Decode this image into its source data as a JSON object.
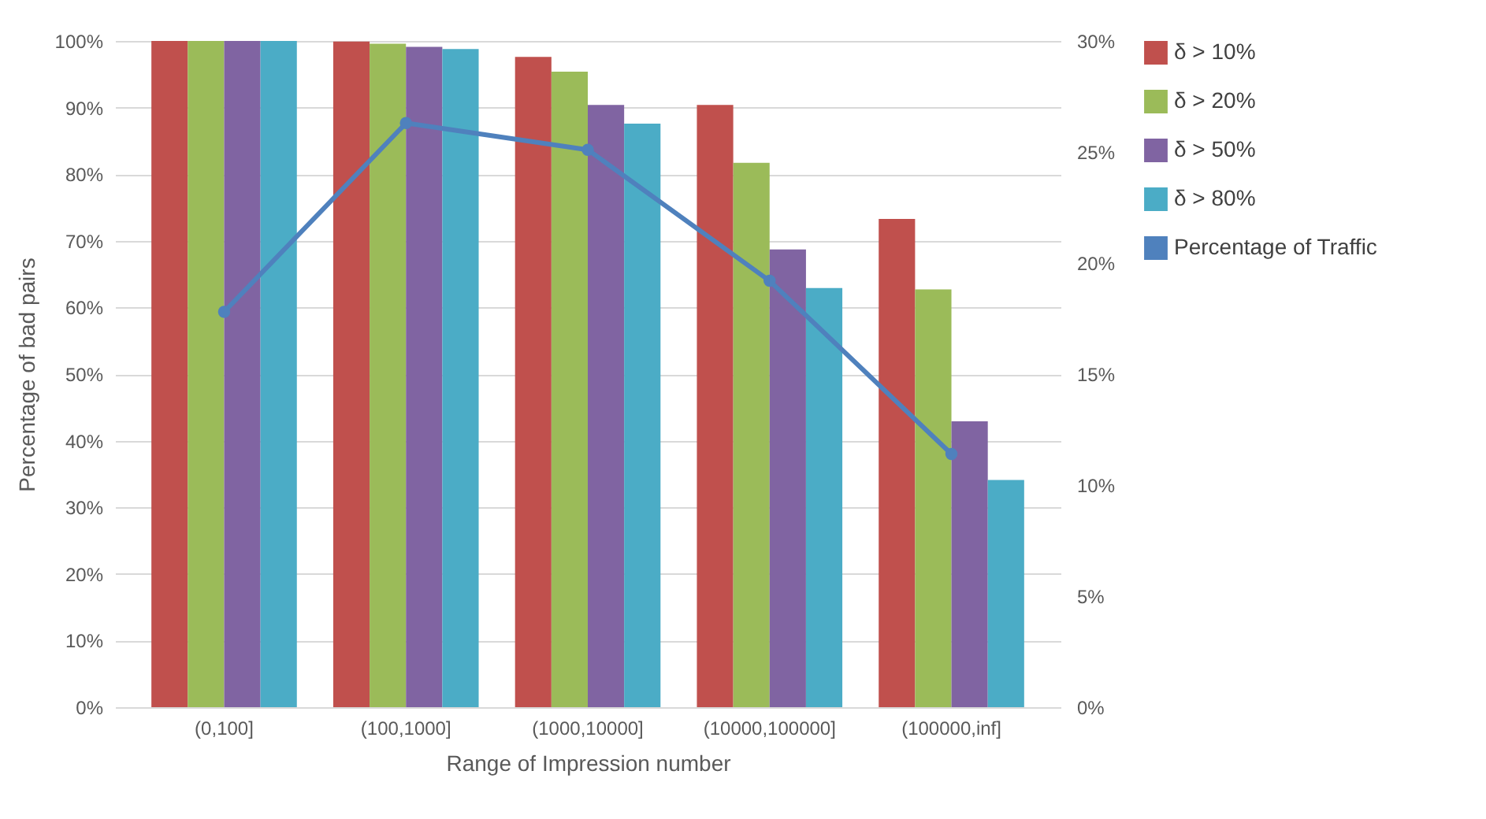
{
  "chart_data": {
    "type": "bar",
    "xlabel": "Range of Impression number",
    "ylabel": "Percentage of bad pairs",
    "categories": [
      "(0,100]",
      "(100,1000]",
      "(1000,10000]",
      "(10000,100000]",
      "(100000,inf]"
    ],
    "series": [
      {
        "name": "δ > 10%",
        "color": "#c0504d",
        "values": [
          100,
          99.9,
          97.6,
          90.4,
          73.3
        ]
      },
      {
        "name": "δ  > 20%",
        "color": "#9bbb59",
        "values": [
          100,
          99.6,
          95.4,
          81.7,
          62.7
        ]
      },
      {
        "name": "δ  > 50%",
        "color": "#8064a2",
        "values": [
          100,
          99.1,
          90.4,
          68.7,
          42.9
        ]
      },
      {
        "name": "δ  > 80%",
        "color": "#4bacc6",
        "values": [
          100,
          98.8,
          87.6,
          62.9,
          34.1
        ]
      },
      {
        "name": "Percentage of Traffic",
        "type": "line",
        "axis": "y2",
        "color": "#4f81bd",
        "values": [
          17.8,
          26.3,
          25.1,
          19.2,
          11.4
        ]
      }
    ],
    "ylim": [
      0,
      100
    ],
    "yticks": [
      {
        "value": 0,
        "label": "0%"
      },
      {
        "value": 10,
        "label": "10%"
      },
      {
        "value": 20,
        "label": "20%"
      },
      {
        "value": 30,
        "label": "30%"
      },
      {
        "value": 40,
        "label": "40%"
      },
      {
        "value": 50,
        "label": "50%"
      },
      {
        "value": 60,
        "label": "60%"
      },
      {
        "value": 70,
        "label": "70%"
      },
      {
        "value": 80,
        "label": "80%"
      },
      {
        "value": 90,
        "label": "90%"
      },
      {
        "value": 100,
        "label": "100%"
      }
    ],
    "y2lim": [
      0,
      30
    ],
    "y2ticks": [
      {
        "value": 0,
        "label": "0%"
      },
      {
        "value": 5,
        "label": "5%"
      },
      {
        "value": 10,
        "label": "10%"
      },
      {
        "value": 15,
        "label": "15%"
      },
      {
        "value": 20,
        "label": "20%"
      },
      {
        "value": 25,
        "label": "25%"
      },
      {
        "value": 30,
        "label": "30%"
      }
    ],
    "grid": "y",
    "legend": "right",
    "marker": "circle",
    "line_style": "solid"
  }
}
